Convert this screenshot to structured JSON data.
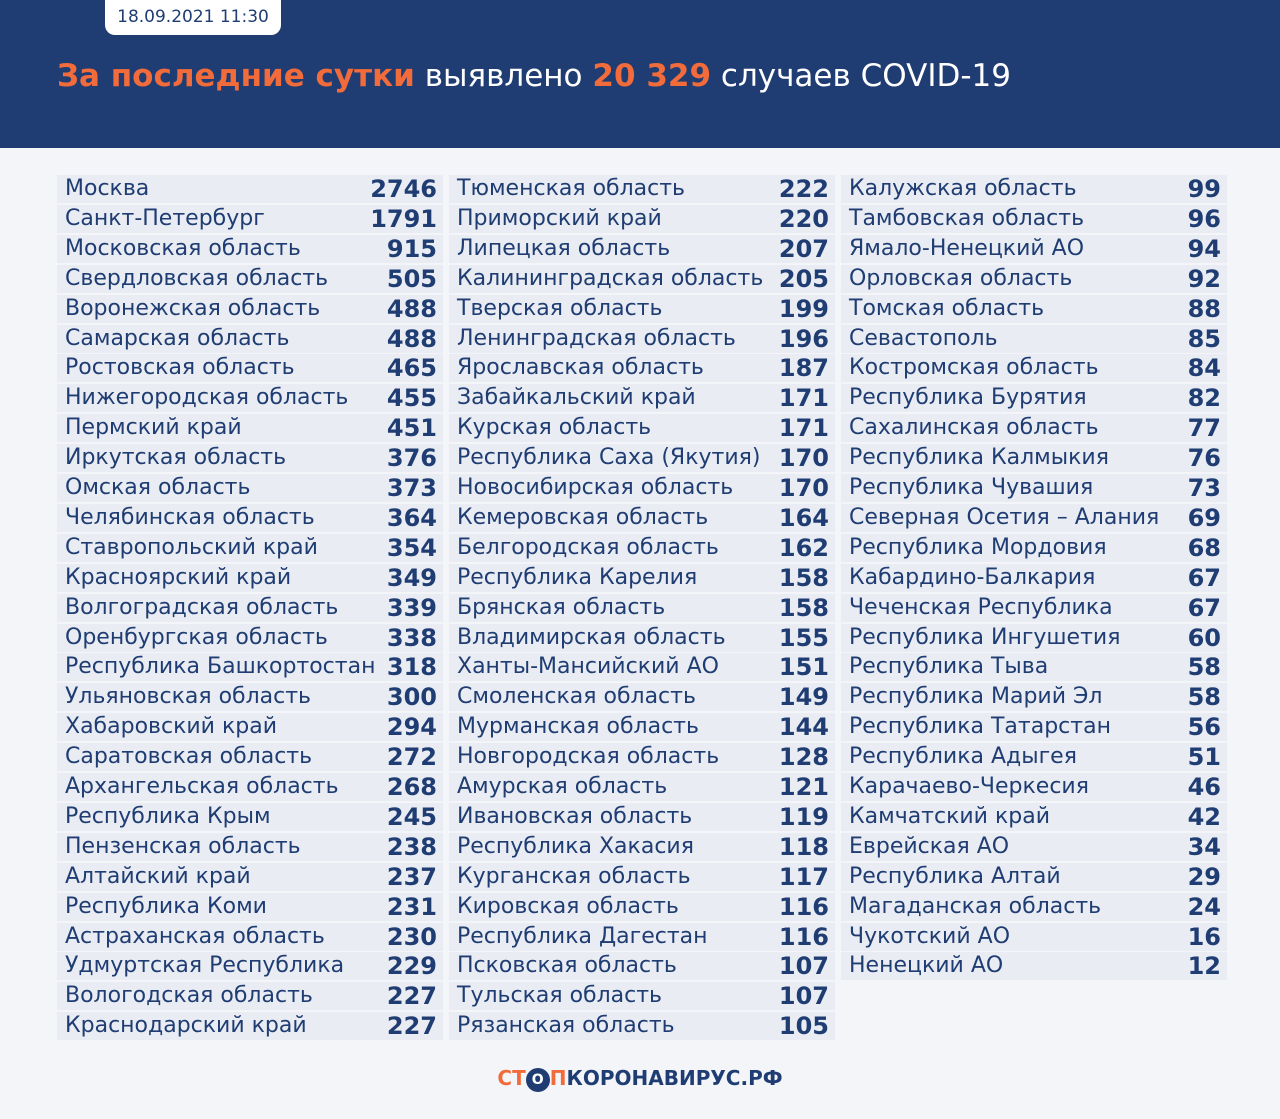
{
  "header": {
    "date": "18.09.2021 11:30",
    "title": [
      "За последние сутки",
      "выявлено",
      "20 329",
      "случаев COVID-19"
    ]
  },
  "table": {
    "columns": [
      [
        [
          "Москва",
          "2746"
        ],
        [
          "Санкт-Петербург",
          "1791"
        ],
        [
          "Московская область",
          "915"
        ],
        [
          "Свердловская область",
          "505"
        ],
        [
          "Воронежская область",
          "488"
        ],
        [
          "Самарская область",
          "488"
        ],
        [
          "Ростовская область",
          "465"
        ],
        [
          "Нижегородская область",
          "455"
        ],
        [
          "Пермский край",
          "451"
        ],
        [
          "Иркутская область",
          "376"
        ],
        [
          "Омская область",
          "373"
        ],
        [
          "Челябинская область",
          "364"
        ],
        [
          "Ставропольский край",
          "354"
        ],
        [
          "Красноярский край",
          "349"
        ],
        [
          "Волгоградская область",
          "339"
        ],
        [
          "Оренбургская область",
          "338"
        ],
        [
          "Республика Башкортостан",
          "318"
        ],
        [
          "Ульяновская область",
          "300"
        ],
        [
          "Хабаровский край",
          "294"
        ],
        [
          "Саратовская область",
          "272"
        ],
        [
          "Архангельская область",
          "268"
        ],
        [
          "Республика Крым",
          "245"
        ],
        [
          "Пензенская область",
          "238"
        ],
        [
          "Алтайский край",
          "237"
        ],
        [
          "Республика Коми",
          "231"
        ],
        [
          "Астраханская область",
          "230"
        ],
        [
          "Удмуртская Республика",
          "229"
        ],
        [
          "Вологодская область",
          "227"
        ],
        [
          "Краснодарский край",
          "227"
        ]
      ],
      [
        [
          "Тюменская область",
          "222"
        ],
        [
          "Приморский край",
          "220"
        ],
        [
          "Липецкая область",
          "207"
        ],
        [
          "Калининградская область",
          "205"
        ],
        [
          "Тверская область",
          "199"
        ],
        [
          "Ленинградская область",
          "196"
        ],
        [
          "Ярославская область",
          "187"
        ],
        [
          "Забайкальский край",
          "171"
        ],
        [
          "Курская область",
          "171"
        ],
        [
          "Республика Саха (Якутия)",
          "170"
        ],
        [
          "Новосибирская область",
          "170"
        ],
        [
          "Кемеровская область",
          "164"
        ],
        [
          "Белгородская область",
          "162"
        ],
        [
          "Республика Карелия",
          "158"
        ],
        [
          "Брянская область",
          "158"
        ],
        [
          "Владимирская область",
          "155"
        ],
        [
          "Ханты-Мансийский АО",
          "151"
        ],
        [
          "Смоленская область",
          "149"
        ],
        [
          "Мурманская область",
          "144"
        ],
        [
          "Новгородская область",
          "128"
        ],
        [
          "Амурская область",
          "121"
        ],
        [
          "Ивановская область",
          "119"
        ],
        [
          "Республика Хакасия",
          "118"
        ],
        [
          "Курганская область",
          "117"
        ],
        [
          "Кировская область",
          "116"
        ],
        [
          "Республика Дагестан",
          "116"
        ],
        [
          "Псковская область",
          "107"
        ],
        [
          "Тульская область",
          "107"
        ],
        [
          "Рязанская область",
          "105"
        ]
      ],
      [
        [
          "Калужская область",
          "99"
        ],
        [
          "Тамбовская область",
          "96"
        ],
        [
          "Ямало-Ненецкий АО",
          "94"
        ],
        [
          "Орловская область",
          "92"
        ],
        [
          "Томская область",
          "88"
        ],
        [
          "Севастополь",
          "85"
        ],
        [
          "Костромская область",
          "84"
        ],
        [
          "Республика Бурятия",
          "82"
        ],
        [
          "Сахалинская область",
          "77"
        ],
        [
          "Республика Калмыкия",
          "76"
        ],
        [
          "Республика Чувашия",
          "73"
        ],
        [
          "Северная Осетия – Алания",
          "69"
        ],
        [
          "Республика Мордовия",
          "68"
        ],
        [
          "Кабардино-Балкария",
          "67"
        ],
        [
          "Чеченская Республика",
          "67"
        ],
        [
          "Республика Ингушетия",
          "60"
        ],
        [
          "Республика Тыва",
          "58"
        ],
        [
          "Республика Марий Эл",
          "58"
        ],
        [
          "Республика Татарстан",
          "56"
        ],
        [
          "Республика Адыгея",
          "51"
        ],
        [
          "Карачаево-Черкесия",
          "46"
        ],
        [
          "Камчатский край",
          "42"
        ],
        [
          "Еврейская АО",
          "34"
        ],
        [
          "Республика Алтай",
          "29"
        ],
        [
          "Магаданская область",
          "24"
        ],
        [
          "Чукотский АО",
          "16"
        ],
        [
          "Ненецкий АО",
          "12"
        ]
      ]
    ]
  },
  "footer": {
    "logo": [
      "СТ",
      "О",
      "П",
      "КОРОНАВИРУС.РФ"
    ]
  }
}
